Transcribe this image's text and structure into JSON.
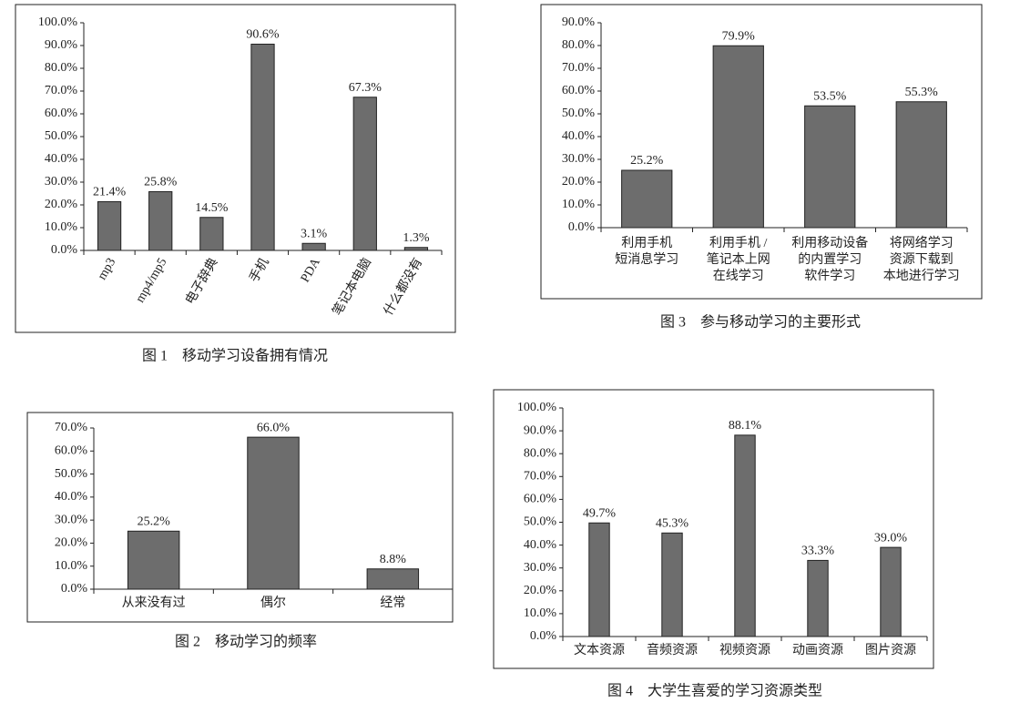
{
  "chart_data": [
    {
      "type": "bar",
      "title": "图 1　移动学习设备拥有情况",
      "color": "#6d6d6d",
      "categories": [
        "mp3",
        "mp4/mp5",
        "电子辞典",
        "手机",
        "PDA",
        "笔记本电脑",
        "什么都没有"
      ],
      "values": [
        21.4,
        25.8,
        14.5,
        90.6,
        3.1,
        67.3,
        1.3
      ],
      "value_labels": [
        "21.4%",
        "25.8%",
        "14.5%",
        "90.6%",
        "3.1%",
        "67.3%",
        "1.3%"
      ],
      "ylim": [
        0,
        100
      ],
      "yticks": [
        {
          "value": 0,
          "label": "0.0%"
        },
        {
          "value": 10,
          "label": "10.0%"
        },
        {
          "value": 20,
          "label": "20.0%"
        },
        {
          "value": 30,
          "label": "30.0%"
        },
        {
          "value": 40,
          "label": "40.0%"
        },
        {
          "value": 50,
          "label": "50.0%"
        },
        {
          "value": 60,
          "label": "60.0%"
        },
        {
          "value": 70,
          "label": "70.0%"
        },
        {
          "value": 80,
          "label": "80.0%"
        },
        {
          "value": 90,
          "label": "90.0%"
        },
        {
          "value": 100,
          "label": "100.0%"
        }
      ]
    },
    {
      "type": "bar",
      "title": "图 3　参与移动学习的主要形式",
      "color": "#6d6d6d",
      "categories": [
        [
          "利用手机",
          "短消息学习"
        ],
        [
          "利用手机 /",
          "笔记本上网",
          "在线学习"
        ],
        [
          "利用移动设备",
          "的内置学习",
          "软件学习"
        ],
        [
          "将网络学习",
          "资源下载到",
          "本地进行学习"
        ]
      ],
      "values": [
        25.2,
        79.9,
        53.5,
        55.3
      ],
      "value_labels": [
        "25.2%",
        "79.9%",
        "53.5%",
        "55.3%"
      ],
      "ylim": [
        0,
        90
      ],
      "yticks": [
        {
          "value": 0,
          "label": "0.0%"
        },
        {
          "value": 10,
          "label": "10.0%"
        },
        {
          "value": 20,
          "label": "20.0%"
        },
        {
          "value": 30,
          "label": "30.0%"
        },
        {
          "value": 40,
          "label": "40.0%"
        },
        {
          "value": 50,
          "label": "50.0%"
        },
        {
          "value": 60,
          "label": "60.0%"
        },
        {
          "value": 70,
          "label": "70.0%"
        },
        {
          "value": 80,
          "label": "80.0%"
        },
        {
          "value": 90,
          "label": "90.0%"
        }
      ]
    },
    {
      "type": "bar",
      "title": "图 2　移动学习的频率",
      "color": "#6d6d6d",
      "categories": [
        "从来没有过",
        "偶尔",
        "经常"
      ],
      "values": [
        25.2,
        66.0,
        8.8
      ],
      "value_labels": [
        "25.2%",
        "66.0%",
        "8.8%"
      ],
      "ylim": [
        0,
        70
      ],
      "yticks": [
        {
          "value": 0,
          "label": "0.0%"
        },
        {
          "value": 10,
          "label": "10.0%"
        },
        {
          "value": 20,
          "label": "20.0%"
        },
        {
          "value": 30,
          "label": "30.0%"
        },
        {
          "value": 40,
          "label": "40.0%"
        },
        {
          "value": 50,
          "label": "50.0%"
        },
        {
          "value": 60,
          "label": "60.0%"
        },
        {
          "value": 70,
          "label": "70.0%"
        }
      ]
    },
    {
      "type": "bar",
      "title": "图 4　大学生喜爱的学习资源类型",
      "color": "#6d6d6d",
      "categories": [
        "文本资源",
        "音频资源",
        "视频资源",
        "动画资源",
        "图片资源"
      ],
      "values": [
        49.7,
        45.3,
        88.1,
        33.3,
        39.0
      ],
      "value_labels": [
        "49.7%",
        "45.3%",
        "88.1%",
        "33.3%",
        "39.0%"
      ],
      "ylim": [
        0,
        100
      ],
      "yticks": [
        {
          "value": 0,
          "label": "0.0%"
        },
        {
          "value": 10,
          "label": "10.0%"
        },
        {
          "value": 20,
          "label": "20.0%"
        },
        {
          "value": 30,
          "label": "30.0%"
        },
        {
          "value": 40,
          "label": "40.0%"
        },
        {
          "value": 50,
          "label": "50.0%"
        },
        {
          "value": 60,
          "label": "60.0%"
        },
        {
          "value": 70,
          "label": "70.0%"
        },
        {
          "value": 80,
          "label": "80.0%"
        },
        {
          "value": 90,
          "label": "90.0%"
        },
        {
          "value": 100,
          "label": "100.0%"
        }
      ]
    }
  ]
}
